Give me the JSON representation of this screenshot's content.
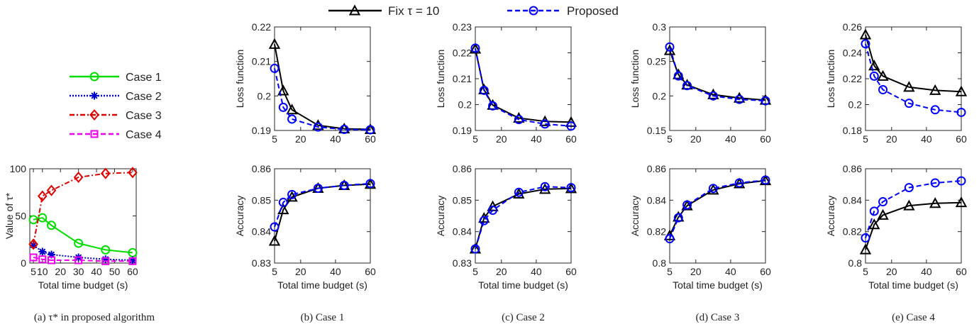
{
  "top_legend": [
    {
      "label": "Fix τ = 10",
      "color": "#000000",
      "marker": "triangle",
      "dash": "solid"
    },
    {
      "label": "Proposed",
      "color": "#0000ff",
      "marker": "circle",
      "dash": "dashed"
    }
  ],
  "chart_data": [
    {
      "type": "line",
      "caption": "(a) τ* in proposed algorithm",
      "xlabel": "Total time budget (s)",
      "ylabel": "Value of τ*",
      "xlim": [
        3,
        62
      ],
      "ylim": [
        0,
        100
      ],
      "xticks": [
        5,
        10,
        20,
        30,
        40,
        50,
        60
      ],
      "yticks": [
        0,
        50,
        100
      ],
      "legend_position": "above-plot",
      "series": [
        {
          "name": "Case 1",
          "color": "#00dd00",
          "marker": "circle",
          "dash": "solid",
          "x": [
            5,
            10,
            15,
            30,
            45,
            60
          ],
          "y": [
            46,
            48,
            40,
            21,
            14,
            11
          ]
        },
        {
          "name": "Case 2",
          "color": "#0000cc",
          "marker": "star",
          "dash": "dotted",
          "x": [
            5,
            10,
            15,
            30,
            45,
            60
          ],
          "y": [
            19,
            12,
            9,
            6,
            4,
            3
          ]
        },
        {
          "name": "Case 3",
          "color": "#dd0000",
          "marker": "diamond",
          "dash": "dashdot",
          "x": [
            5,
            10,
            15,
            30,
            45,
            60
          ],
          "y": [
            20,
            71,
            77,
            91,
            95,
            96
          ]
        },
        {
          "name": "Case 4",
          "color": "#ee00ee",
          "marker": "square",
          "dash": "dashed",
          "x": [
            5,
            10,
            15,
            30,
            45,
            60
          ],
          "y": [
            6,
            4,
            3,
            3,
            2,
            2
          ]
        }
      ]
    },
    {
      "type": "line",
      "caption": "(b) Case 1",
      "xlabel": "Total time budget (s)",
      "panels": [
        {
          "ylabel": "Loss function",
          "xlim": [
            5,
            60
          ],
          "ylim": [
            0.19,
            0.22
          ],
          "xticks": [
            5,
            20,
            40,
            60
          ],
          "yticks": [
            0.19,
            0.2,
            0.21,
            0.22
          ],
          "ytick_labels": [
            "0.19",
            "0.2",
            "0.21",
            "0.22"
          ],
          "series": [
            {
              "x": [
                5,
                10,
                15,
                30,
                45,
                60
              ],
              "y": [
                0.215,
                0.2015,
                0.196,
                0.1915,
                0.1905,
                0.1903
              ]
            },
            {
              "x": [
                5,
                10,
                15,
                30,
                45,
                60
              ],
              "y": [
                0.208,
                0.1967,
                0.1933,
                0.191,
                0.1903,
                0.1902
              ]
            }
          ]
        },
        {
          "ylabel": "Accuracy",
          "xlim": [
            5,
            60
          ],
          "ylim": [
            0.83,
            0.86
          ],
          "xticks": [
            5,
            20,
            40,
            60
          ],
          "yticks": [
            0.83,
            0.84,
            0.85,
            0.86
          ],
          "ytick_labels": [
            "0.83",
            "0.84",
            "0.85",
            "0.86"
          ],
          "series": [
            {
              "x": [
                5,
                10,
                15,
                30,
                45,
                60
              ],
              "y": [
                0.837,
                0.847,
                0.851,
                0.8538,
                0.8547,
                0.8551
              ]
            },
            {
              "x": [
                5,
                10,
                15,
                30,
                45,
                60
              ],
              "y": [
                0.8415,
                0.8493,
                0.8518,
                0.8538,
                0.8547,
                0.8553
              ]
            }
          ]
        }
      ]
    },
    {
      "type": "line",
      "caption": "(c) Case 2",
      "xlabel": "Total time budget (s)",
      "panels": [
        {
          "ylabel": "Loss function",
          "xlim": [
            5,
            60
          ],
          "ylim": [
            0.19,
            0.23
          ],
          "xticks": [
            5,
            20,
            40,
            60
          ],
          "yticks": [
            0.19,
            0.2,
            0.21,
            0.22,
            0.23
          ],
          "ytick_labels": [
            "0.19",
            "0.2",
            "0.21",
            "0.22",
            "0.23"
          ],
          "series": [
            {
              "x": [
                5,
                10,
                15,
                30,
                45,
                60
              ],
              "y": [
                0.2215,
                0.2058,
                0.1998,
                0.1948,
                0.1935,
                0.1932
              ]
            },
            {
              "x": [
                5,
                10,
                15,
                30,
                45,
                60
              ],
              "y": [
                0.2218,
                0.2055,
                0.1995,
                0.1942,
                0.1925,
                0.1917
              ]
            }
          ]
        },
        {
          "ylabel": "Accuracy",
          "xlim": [
            5,
            60
          ],
          "ylim": [
            0.83,
            0.86
          ],
          "xticks": [
            5,
            20,
            40,
            60
          ],
          "yticks": [
            0.83,
            0.84,
            0.85,
            0.86
          ],
          "ytick_labels": [
            "0.83",
            "0.84",
            "0.85",
            "0.86"
          ],
          "series": [
            {
              "x": [
                5,
                10,
                15,
                30,
                45,
                60
              ],
              "y": [
                0.8345,
                0.8443,
                0.848,
                0.852,
                0.8535,
                0.8537
              ]
            },
            {
              "x": [
                5,
                10,
                15,
                30,
                45,
                60
              ],
              "y": [
                0.8345,
                0.8435,
                0.8468,
                0.8525,
                0.8543,
                0.854
              ]
            }
          ]
        }
      ]
    },
    {
      "type": "line",
      "caption": "(d) Case 3",
      "xlabel": "Total time budget (s)",
      "panels": [
        {
          "ylabel": "Loss function",
          "xlim": [
            5,
            60
          ],
          "ylim": [
            0.15,
            0.3
          ],
          "xticks": [
            5,
            20,
            40,
            60
          ],
          "yticks": [
            0.15,
            0.2,
            0.25,
            0.3
          ],
          "ytick_labels": [
            "0.15",
            "0.2",
            "0.25",
            "0.3"
          ],
          "series": [
            {
              "x": [
                5,
                10,
                15,
                30,
                45,
                60
              ],
              "y": [
                0.266,
                0.231,
                0.216,
                0.202,
                0.197,
                0.194
              ]
            },
            {
              "x": [
                5,
                10,
                15,
                30,
                45,
                60
              ],
              "y": [
                0.271,
                0.229,
                0.215,
                0.2,
                0.195,
                0.193
              ]
            }
          ]
        },
        {
          "ylabel": "Accuracy",
          "xlim": [
            5,
            60
          ],
          "ylim": [
            0.8,
            0.86
          ],
          "xticks": [
            5,
            20,
            40,
            60
          ],
          "yticks": [
            0.8,
            0.82,
            0.84,
            0.86
          ],
          "ytick_labels": [
            "0.8",
            "0.82",
            "0.84",
            "0.86"
          ],
          "series": [
            {
              "x": [
                5,
                10,
                15,
                30,
                45,
                60
              ],
              "y": [
                0.8175,
                0.8293,
                0.8365,
                0.8465,
                0.8505,
                0.8525
              ]
            },
            {
              "x": [
                5,
                10,
                15,
                30,
                45,
                60
              ],
              "y": [
                0.8155,
                0.8288,
                0.837,
                0.8475,
                0.851,
                0.8528
              ]
            }
          ]
        }
      ]
    },
    {
      "type": "line",
      "caption": "(e) Case 4",
      "xlabel": "Total time budget (s)",
      "panels": [
        {
          "ylabel": "Loss function",
          "xlim": [
            5,
            60
          ],
          "ylim": [
            0.18,
            0.26
          ],
          "xticks": [
            5,
            20,
            40,
            60
          ],
          "yticks": [
            0.18,
            0.2,
            0.22,
            0.24,
            0.26
          ],
          "ytick_labels": [
            "0.18",
            "0.2",
            "0.22",
            "0.24",
            "0.26"
          ],
          "series": [
            {
              "x": [
                5,
                10,
                15,
                30,
                45,
                60
              ],
              "y": [
                0.254,
                0.23,
                0.222,
                0.2135,
                0.211,
                0.21
              ]
            },
            {
              "x": [
                5,
                10,
                15,
                30,
                45,
                60
              ],
              "y": [
                0.247,
                0.222,
                0.2115,
                0.201,
                0.196,
                0.194
              ]
            }
          ]
        },
        {
          "ylabel": "Accuracy",
          "xlim": [
            5,
            60
          ],
          "ylim": [
            0.8,
            0.86
          ],
          "xticks": [
            5,
            20,
            40,
            60
          ],
          "yticks": [
            0.8,
            0.82,
            0.84,
            0.86
          ],
          "ytick_labels": [
            "0.8",
            "0.82",
            "0.84",
            "0.86"
          ],
          "series": [
            {
              "x": [
                5,
                10,
                15,
                30,
                45,
                60
              ],
              "y": [
                0.8085,
                0.8245,
                0.8305,
                0.8365,
                0.838,
                0.8385
              ]
            },
            {
              "x": [
                5,
                10,
                15,
                30,
                45,
                60
              ],
              "y": [
                0.816,
                0.833,
                0.839,
                0.848,
                0.851,
                0.8523
              ]
            }
          ]
        }
      ]
    }
  ]
}
